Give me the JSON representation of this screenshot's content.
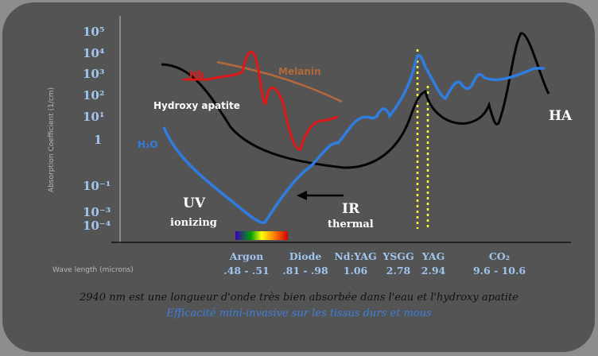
{
  "chart_data": {
    "type": "line",
    "y_axis_label": "Absorption Coefficient (1/cm)",
    "x_axis_label": "Wave length (microns)",
    "y_scale": "log",
    "y_tick_labels": [
      "10⁵",
      "10⁴",
      "10³",
      "10²",
      "10¹",
      "1",
      "10⁻¹",
      "10⁻³",
      "10⁻⁴"
    ],
    "wavelength_labels": [
      {
        "name": "Argon",
        "range": ".48 - .51"
      },
      {
        "name": "Diode",
        "range": ".81 - .98"
      },
      {
        "name": "Nd:YAG",
        "range": "1.06"
      },
      {
        "name": "YSGG",
        "range": "2.78"
      },
      {
        "name": "YAG",
        "range": "2.94"
      },
      {
        "name": "CO₂",
        "range": "9.6 - 10.6"
      }
    ],
    "series": [
      {
        "name": "Hb",
        "color": "#e01818"
      },
      {
        "name": "Melanin",
        "color": "#b4693a"
      },
      {
        "name": "Hydroxy apatite",
        "color": "#050505"
      },
      {
        "name": "H₂O",
        "color": "#2f7de0"
      }
    ],
    "series_end_label": "HA",
    "annotations": {
      "uv": "UV",
      "uv_sub": "ionizing",
      "ir": "IR",
      "ir_sub": "thermal"
    },
    "laser_marker_color": "#ffff33",
    "visible_spectrum_bar": [
      "#3a00b8",
      "#00a000",
      "#ffff00",
      "#ff8a00",
      "#d00000"
    ]
  },
  "caption": {
    "line1": "2940 nm est une longueur d'onde très bien absorbée dans l'eau et l'hydroxy apatite",
    "line2": "Efficacité mini-invasive sur les tissus durs et mous"
  },
  "colors": {
    "panel": "#545454",
    "background": "#8d8d8d",
    "tick_text": "#9fc5ef"
  }
}
